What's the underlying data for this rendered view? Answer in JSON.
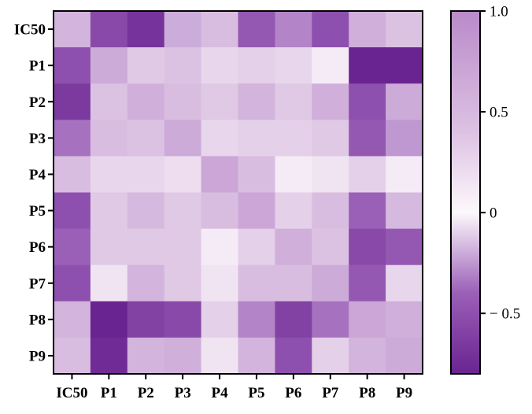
{
  "chart_data": {
    "type": "heatmap",
    "title": "",
    "xlabel": "",
    "ylabel": "",
    "rows": [
      "IC50",
      "P1",
      "P2",
      "P3",
      "P4",
      "P5",
      "P6",
      "P7",
      "P8",
      "P9"
    ],
    "columns": [
      "IC50",
      "P1",
      "P2",
      "P3",
      "P4",
      "P5",
      "P6",
      "P7",
      "P8",
      "P9"
    ],
    "values": [
      [
        0.55,
        -0.55,
        -0.7,
        -0.2,
        0.45,
        -0.45,
        -0.3,
        -0.5,
        0.6,
        0.4
      ],
      [
        -0.5,
        0.65,
        0.35,
        0.4,
        0.25,
        0.3,
        0.25,
        0.1,
        -0.85,
        -0.85
      ],
      [
        -0.65,
        0.4,
        0.6,
        0.45,
        0.35,
        0.55,
        0.35,
        0.6,
        -0.5,
        0.65
      ],
      [
        -0.35,
        0.45,
        0.4,
        0.65,
        0.25,
        0.3,
        0.3,
        0.35,
        -0.45,
        -0.25
      ],
      [
        0.45,
        0.25,
        0.25,
        0.2,
        0.7,
        0.45,
        0.1,
        0.15,
        0.3,
        0.1
      ],
      [
        -0.5,
        0.35,
        0.5,
        0.35,
        0.45,
        0.7,
        0.3,
        0.45,
        -0.4,
        0.5
      ],
      [
        -0.4,
        0.35,
        0.35,
        0.35,
        0.1,
        0.3,
        0.6,
        0.4,
        -0.55,
        -0.45
      ],
      [
        -0.5,
        0.15,
        0.55,
        0.35,
        0.15,
        0.45,
        0.45,
        0.65,
        -0.45,
        0.25
      ],
      [
        0.55,
        -0.8,
        -0.6,
        -0.55,
        0.3,
        -0.3,
        -0.6,
        -0.35,
        0.7,
        0.6
      ],
      [
        0.45,
        -0.75,
        0.55,
        0.6,
        0.15,
        0.55,
        -0.5,
        0.3,
        0.55,
        0.65
      ]
    ],
    "colorbar": {
      "vmin": -0.8,
      "vmax": 1.0,
      "ticks": [
        {
          "value": 1.0,
          "label": "1.0"
        },
        {
          "value": 0.5,
          "label": "0.5"
        },
        {
          "value": 0.0,
          "label": "0"
        },
        {
          "value": -0.5,
          "label": "− 0.5"
        }
      ],
      "stops": [
        {
          "value": -0.8,
          "color": "#6a2491"
        },
        {
          "value": -0.4,
          "color": "#9a5fb7"
        },
        {
          "value": 0.0,
          "color": "#fdf8fc"
        },
        {
          "value": 0.4,
          "color": "#dcc2e2"
        },
        {
          "value": 1.0,
          "color": "#b98ac9"
        }
      ]
    },
    "grid": false,
    "legend": "colorbar-right"
  }
}
